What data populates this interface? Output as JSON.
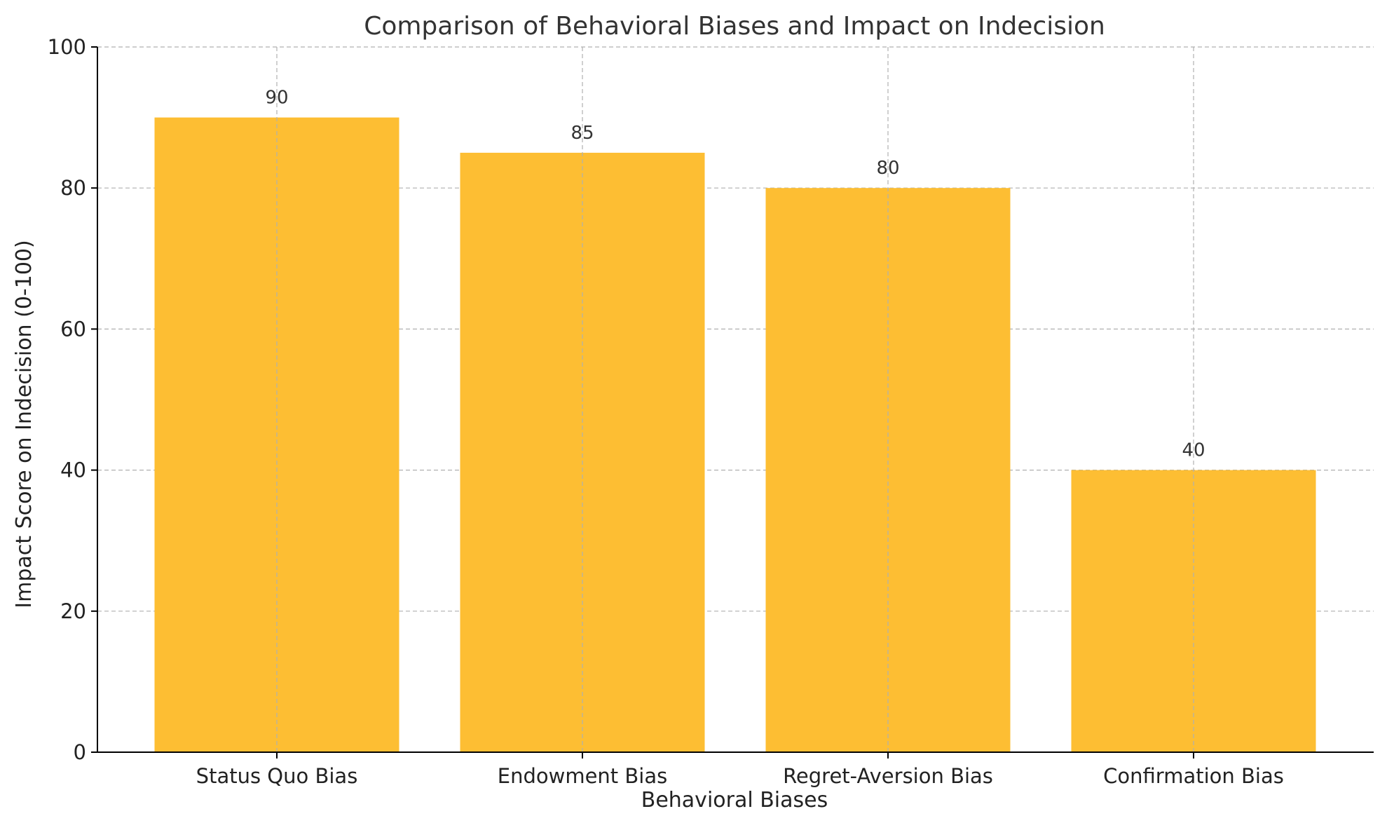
{
  "chart_data": {
    "type": "bar",
    "title": "Comparison of Behavioral Biases and Impact on Indecision",
    "xlabel": "Behavioral Biases",
    "ylabel": "Impact Score on Indecision (0-100)",
    "categories": [
      "Status Quo Bias",
      "Endowment Bias",
      "Regret-Aversion Bias",
      "Confirmation Bias"
    ],
    "values": [
      90,
      85,
      80,
      40
    ],
    "data_labels": [
      "90",
      "85",
      "80",
      "40"
    ],
    "ylim": [
      0,
      100
    ],
    "yticks": [
      0,
      20,
      40,
      60,
      80,
      100
    ],
    "ytick_labels": [
      "0",
      "20",
      "40",
      "60",
      "80",
      "100"
    ],
    "grid": true,
    "colors": {
      "bar": "#FDBE33"
    }
  }
}
